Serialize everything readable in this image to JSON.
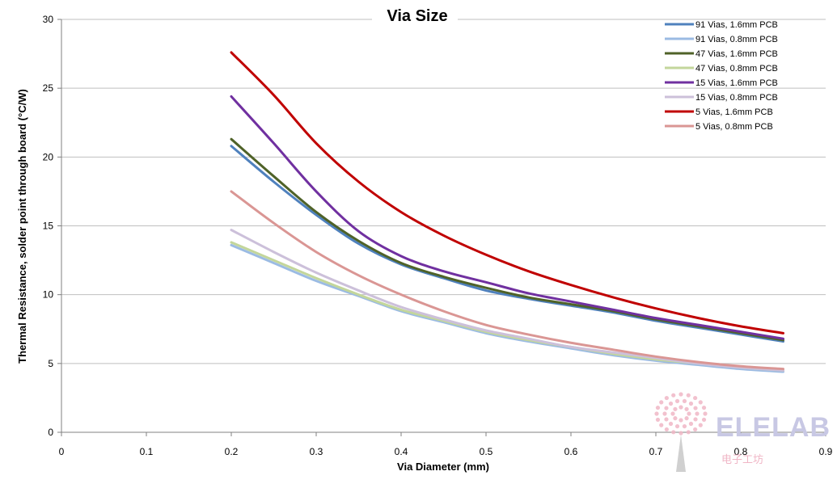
{
  "chart_data": {
    "type": "line",
    "title": "Via Size",
    "xlabel": "Via Diameter (mm)",
    "ylabel": "Thermal Resistance, solder point through board (°C/W)",
    "xlim": [
      0,
      0.9
    ],
    "ylim": [
      0,
      30
    ],
    "xticks": [
      "0",
      "0.1",
      "0.2",
      "0.3",
      "0.4",
      "0.5",
      "0.6",
      "0.7",
      "0.8",
      "0.9"
    ],
    "yticks": [
      "0",
      "5",
      "10",
      "15",
      "20",
      "25",
      "30"
    ],
    "grid": "horizontal",
    "legend_position": "top-right",
    "x": [
      0.2,
      0.25,
      0.3,
      0.35,
      0.4,
      0.45,
      0.5,
      0.55,
      0.6,
      0.65,
      0.7,
      0.75,
      0.8,
      0.85
    ],
    "series": [
      {
        "name": "91 Vias, 1.6mm PCB",
        "color": "#4f81bd",
        "values": [
          20.8,
          18.2,
          15.8,
          13.7,
          12.2,
          11.2,
          10.3,
          9.7,
          9.2,
          8.7,
          8.1,
          7.6,
          7.1,
          6.6
        ]
      },
      {
        "name": "91 Vias, 0.8mm PCB",
        "color": "#9bbbe3",
        "values": [
          13.6,
          12.3,
          11.0,
          9.9,
          8.8,
          8.0,
          7.2,
          6.6,
          6.1,
          5.6,
          5.2,
          4.9,
          4.6,
          4.4
        ]
      },
      {
        "name": "47 Vias, 1.6mm PCB",
        "color": "#4f6228",
        "values": [
          21.3,
          18.6,
          16.0,
          13.9,
          12.3,
          11.3,
          10.5,
          9.8,
          9.3,
          8.8,
          8.2,
          7.7,
          7.2,
          6.7
        ]
      },
      {
        "name": "47 Vias, 0.8mm PCB",
        "color": "#c3d69b",
        "values": [
          13.8,
          12.5,
          11.2,
          10.0,
          8.9,
          8.1,
          7.3,
          6.7,
          6.2,
          5.7,
          5.3,
          5.0,
          4.7,
          4.5
        ]
      },
      {
        "name": "15 Vias, 1.6mm PCB",
        "color": "#7030a0",
        "values": [
          24.4,
          21.0,
          17.5,
          14.6,
          12.8,
          11.7,
          10.9,
          10.1,
          9.5,
          8.9,
          8.3,
          7.8,
          7.3,
          6.8
        ]
      },
      {
        "name": "15 Vias, 0.8mm PCB",
        "color": "#ccc0da",
        "values": [
          14.7,
          13.1,
          11.6,
          10.3,
          9.1,
          8.2,
          7.4,
          6.8,
          6.2,
          5.8,
          5.4,
          5.0,
          4.7,
          4.5
        ]
      },
      {
        "name": "5 Vias, 1.6mm PCB",
        "color": "#c00000",
        "values": [
          27.6,
          24.5,
          21.0,
          18.2,
          16.0,
          14.3,
          12.9,
          11.7,
          10.7,
          9.8,
          9.0,
          8.3,
          7.7,
          7.2
        ]
      },
      {
        "name": "5 Vias, 0.8mm PCB",
        "color": "#da9694",
        "values": [
          17.5,
          15.2,
          13.1,
          11.4,
          10.0,
          8.8,
          7.8,
          7.1,
          6.5,
          6.0,
          5.5,
          5.1,
          4.8,
          4.6
        ]
      }
    ]
  },
  "watermark": {
    "logo_text": "ELELAB",
    "sub_text": "电子工坊",
    "color_primary": "#c8c8e4",
    "color_accent": "#f0b6c6"
  }
}
